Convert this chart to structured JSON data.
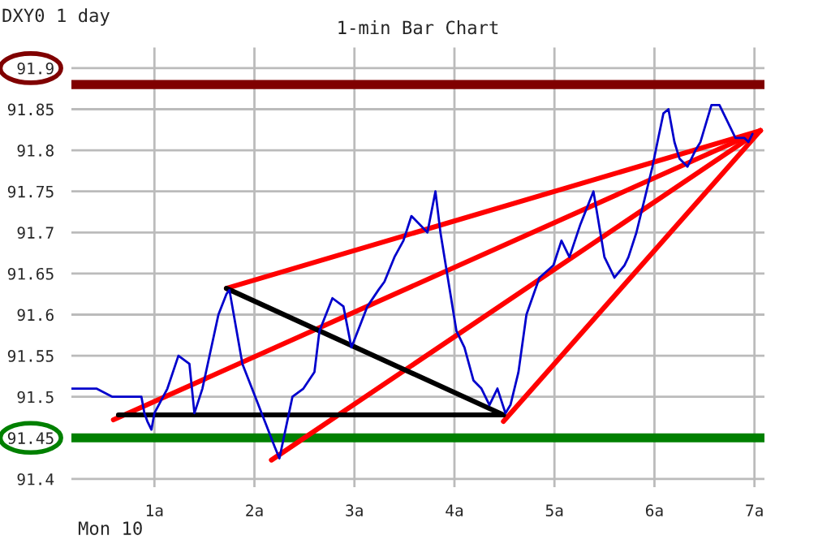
{
  "chart_data": {
    "type": "line",
    "title": "1-min Bar Chart",
    "annotations": [
      "DXY0 1 day",
      "Mon 10"
    ],
    "xlim": [
      0.17,
      7.1
    ],
    "xticks": [
      {
        "value": 1,
        "label": "1a"
      },
      {
        "value": 2,
        "label": "2a"
      },
      {
        "value": 3,
        "label": "3a"
      },
      {
        "value": 4,
        "label": "4a"
      },
      {
        "value": 5,
        "label": "5a"
      },
      {
        "value": 6,
        "label": "6a"
      },
      {
        "value": 7,
        "label": "7a"
      }
    ],
    "ylim": [
      91.39,
      91.925
    ],
    "yticks": [
      91.4,
      91.45,
      91.5,
      91.55,
      91.6,
      91.65,
      91.7,
      91.75,
      91.8,
      91.85,
      91.9
    ],
    "grid": true,
    "legend": false,
    "ref_lines": [
      {
        "axis": "y",
        "value": 91.88,
        "color": "#800000"
      },
      {
        "axis": "y",
        "value": 91.45,
        "color": "#008000"
      }
    ],
    "series": [
      {
        "color": "#0000cc",
        "x": [
          0.17,
          0.42,
          0.58,
          0.87,
          0.9,
          0.93,
          0.97,
          1.0,
          1.13,
          1.24,
          1.35,
          1.4,
          1.48,
          1.64,
          1.72,
          1.75,
          1.88,
          2.04,
          2.12,
          2.2,
          2.25,
          2.38,
          2.49,
          2.6,
          2.65,
          2.78,
          2.89,
          2.97,
          3.13,
          3.24,
          3.3,
          3.4,
          3.49,
          3.57,
          3.73,
          3.81,
          3.86,
          3.94,
          4.02,
          4.1,
          4.19,
          4.27,
          4.35,
          4.43,
          4.51,
          4.56,
          4.64,
          4.72,
          4.85,
          4.99,
          5.07,
          5.15,
          5.26,
          5.39,
          5.5,
          5.6,
          5.7,
          5.74,
          5.82,
          5.9,
          5.98,
          6.04,
          6.09,
          6.14,
          6.2,
          6.25,
          6.33,
          6.41,
          6.46,
          6.57,
          6.65,
          6.73,
          6.81,
          6.9,
          6.94,
          6.98
        ],
        "values": [
          91.51,
          91.51,
          91.5,
          91.5,
          91.48,
          91.47,
          91.46,
          91.48,
          91.51,
          91.55,
          91.54,
          91.48,
          91.51,
          91.6,
          91.625,
          91.63,
          91.54,
          91.49,
          91.465,
          91.44,
          91.425,
          91.5,
          91.51,
          91.53,
          91.58,
          91.62,
          91.61,
          91.56,
          91.61,
          91.63,
          91.64,
          91.67,
          91.69,
          91.72,
          91.7,
          91.75,
          91.7,
          91.64,
          91.58,
          91.56,
          91.52,
          91.51,
          91.49,
          91.51,
          91.48,
          91.49,
          91.53,
          91.6,
          91.645,
          91.66,
          91.69,
          91.67,
          91.71,
          91.75,
          91.67,
          91.645,
          91.66,
          91.67,
          91.7,
          91.74,
          91.78,
          91.816,
          91.845,
          91.85,
          91.81,
          91.79,
          91.78,
          91.8,
          91.81,
          91.855,
          91.855,
          91.835,
          91.815,
          91.815,
          91.81,
          91.82
        ]
      },
      {
        "color": "#ff0000",
        "x": [
          1.72,
          7.06
        ],
        "values": [
          91.632,
          91.824
        ]
      },
      {
        "color": "#ff0000",
        "x": [
          0.59,
          7.06
        ],
        "values": [
          91.472,
          91.824
        ]
      },
      {
        "color": "#ff0000",
        "x": [
          2.17,
          7.06
        ],
        "values": [
          91.423,
          91.824
        ]
      },
      {
        "color": "#ff0000",
        "x": [
          4.49,
          7.06
        ],
        "values": [
          91.47,
          91.824
        ]
      },
      {
        "color": "#000000",
        "x": [
          1.72,
          4.49
        ],
        "values": [
          91.632,
          91.478
        ]
      },
      {
        "color": "#000000",
        "x": [
          0.64,
          4.49
        ],
        "values": [
          91.478,
          91.478
        ]
      }
    ]
  }
}
